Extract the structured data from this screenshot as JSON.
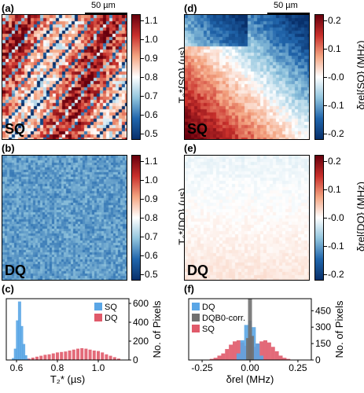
{
  "panels": {
    "a": {
      "label": "(a)",
      "tag": "SQ",
      "scale": "50 µm"
    },
    "b": {
      "label": "(b)",
      "tag": "DQ"
    },
    "c": {
      "label": "(c)"
    },
    "d": {
      "label": "(d)",
      "tag": "SQ",
      "scale": "50 µm"
    },
    "e": {
      "label": "(e)",
      "tag": "DQ"
    },
    "f": {
      "label": "(f)"
    }
  },
  "colorbars": {
    "t2": {
      "ticks": [
        "1.1",
        "1.0",
        "0.9",
        "0.8",
        "0.7",
        "0.6",
        "0.5"
      ],
      "label_sq": "T₂*{SQ} (µs)",
      "label_dq": "T₂*{DQ} (µs)"
    },
    "delta": {
      "ticks": [
        "0.2",
        "0.1",
        "-0.0",
        "-0.1",
        "-0.2"
      ],
      "label_sq": "δrel{SQ} (MHz)",
      "label_dq": "δrel{DQ} (MHz)"
    }
  },
  "colors": {
    "sq": "#5aa6e6",
    "dq": "#e05a6a",
    "dqcorr": "#707070"
  },
  "chart_data": [
    {
      "type": "bar",
      "panel": "c",
      "xlabel": "T₂* (µs)",
      "ylabel": "No. of Pixels",
      "xlim": [
        0.55,
        1.15
      ],
      "ylim": [
        0,
        650
      ],
      "xticks": [
        "0.6",
        "0.8",
        "1.0"
      ],
      "yticks": [
        "0",
        "200",
        "400",
        "600"
      ],
      "legend": [
        "SQ",
        "DQ"
      ],
      "legend_position": "top-right",
      "series": [
        {
          "name": "SQ",
          "x": [
            0.585,
            0.595,
            0.605,
            0.615,
            0.625,
            0.635,
            0.645,
            0.655
          ],
          "values": [
            20,
            120,
            420,
            620,
            360,
            170,
            50,
            10
          ]
        },
        {
          "name": "DQ",
          "x": [
            0.66,
            0.68,
            0.7,
            0.72,
            0.74,
            0.76,
            0.78,
            0.8,
            0.82,
            0.84,
            0.86,
            0.88,
            0.9,
            0.92,
            0.94,
            0.96,
            0.98,
            1.0,
            1.02,
            1.04,
            1.06,
            1.08,
            1.1
          ],
          "values": [
            15,
            25,
            35,
            45,
            55,
            60,
            70,
            80,
            85,
            90,
            100,
            110,
            120,
            125,
            120,
            110,
            100,
            95,
            80,
            60,
            45,
            30,
            15
          ]
        }
      ]
    },
    {
      "type": "bar",
      "panel": "f",
      "xlabel": "δrel (MHz)",
      "ylabel": "No. of Pixels",
      "xlim": [
        -0.32,
        0.32
      ],
      "ylim": [
        0,
        560
      ],
      "xticks": [
        "-0.25",
        "0.00",
        "0.25"
      ],
      "yticks": [
        "0",
        "150",
        "300",
        "450"
      ],
      "legend": [
        "DQ",
        "DQB0-corr.",
        "SQ"
      ],
      "legend_position": "top-left",
      "series": [
        {
          "name": "SQ",
          "x": [
            -0.2,
            -0.18,
            -0.16,
            -0.14,
            -0.12,
            -0.1,
            -0.08,
            -0.06,
            -0.04,
            -0.02,
            0.0,
            0.02,
            0.04,
            0.06,
            0.08,
            0.1,
            0.12,
            0.14,
            0.16,
            0.18,
            0.2
          ],
          "values": [
            10,
            20,
            40,
            60,
            100,
            140,
            170,
            180,
            160,
            130,
            110,
            120,
            150,
            170,
            180,
            160,
            120,
            80,
            40,
            20,
            10
          ]
        },
        {
          "name": "DQ",
          "x": [
            -0.06,
            -0.04,
            -0.02,
            0.0,
            0.02,
            0.04,
            0.06
          ],
          "values": [
            60,
            180,
            320,
            360,
            300,
            150,
            40
          ]
        },
        {
          "name": "DQB0-corr.",
          "x": [
            -0.01,
            0.0,
            0.01
          ],
          "values": [
            200,
            560,
            220
          ]
        }
      ]
    }
  ]
}
